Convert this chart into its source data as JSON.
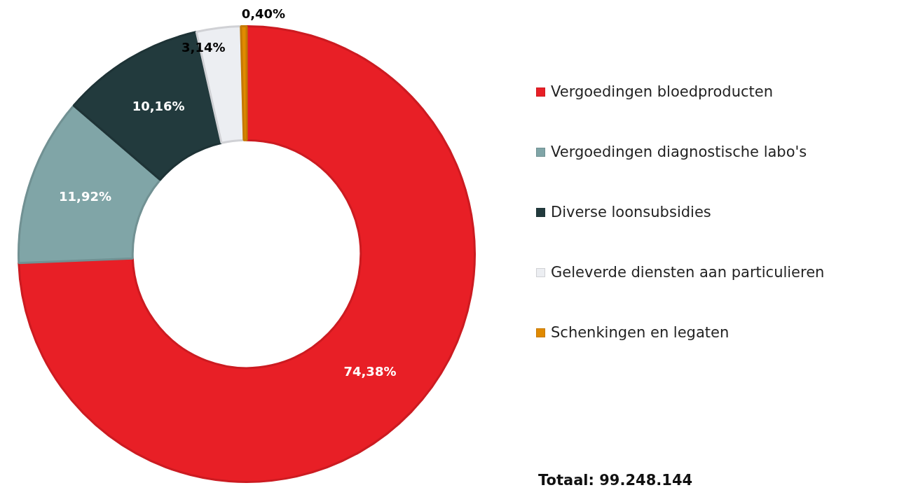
{
  "chart_data": {
    "type": "donut",
    "categories": [
      "Vergoedingen bloedproducten",
      "Vergoedingen diagnostische labo's",
      "Diverse loonsubsidies",
      "Geleverde diensten aan particulieren",
      "Schenkingen en legaten"
    ],
    "values": [
      74.38,
      11.92,
      10.16,
      3.14,
      0.4
    ],
    "value_labels": [
      "74,38%",
      "11,92%",
      "10,16%",
      "3,14%",
      "0,40%"
    ],
    "colors": [
      "#e81f26",
      "#80a5a7",
      "#223a3d",
      "#eceef2",
      "#e08a00"
    ],
    "legend": "right",
    "annotations": [
      "Totaal: 99.248.144"
    ]
  }
}
